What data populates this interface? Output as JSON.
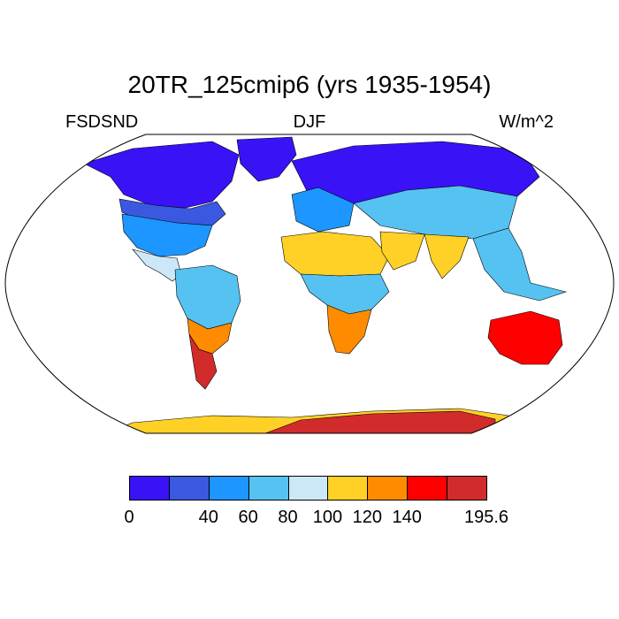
{
  "title": "20TR_125cmip6 (yrs 1935-1954)",
  "left_label": "FSDSND",
  "center_label": "DJF",
  "right_label": "W/m^2",
  "colorbar": {
    "colors": [
      "#3a12f6",
      "#3b58e0",
      "#1d96ff",
      "#55c2f2",
      "#cce8f8",
      "#ffd026",
      "#ff8c00",
      "#ff0000",
      "#d22b2b"
    ],
    "ticks": [
      {
        "value": "0",
        "index": 0
      },
      {
        "value": "40",
        "index": 2
      },
      {
        "value": "60",
        "index": 3
      },
      {
        "value": "80",
        "index": 4
      },
      {
        "value": "100",
        "index": 5
      },
      {
        "value": "120",
        "index": 6
      },
      {
        "value": "140",
        "index": 7
      },
      {
        "value": "195.6",
        "index": 9
      }
    ]
  },
  "legend_ranges": [
    "0-20",
    "20-40",
    "40-60",
    "60-80",
    "80-100",
    "100-120",
    "120-140",
    "140-160",
    "160-195.6"
  ],
  "map_regions": [
    {
      "name": "north-america-arctic",
      "level": 0
    },
    {
      "name": "greenland",
      "level": 0
    },
    {
      "name": "eurasia-north",
      "level": 0
    },
    {
      "name": "canada-south",
      "level": 1
    },
    {
      "name": "usa",
      "level": 2
    },
    {
      "name": "mexico",
      "level": 4
    },
    {
      "name": "south-america-north",
      "level": 3
    },
    {
      "name": "south-america-south",
      "level": 6
    },
    {
      "name": "patagonia",
      "level": 8
    },
    {
      "name": "europe",
      "level": 2
    },
    {
      "name": "central-asia",
      "level": 3
    },
    {
      "name": "sahara",
      "level": 5
    },
    {
      "name": "arabia",
      "level": 5
    },
    {
      "name": "india",
      "level": 5
    },
    {
      "name": "central-africa",
      "level": 3
    },
    {
      "name": "southern-africa",
      "level": 6
    },
    {
      "name": "southeast-asia",
      "level": 3
    },
    {
      "name": "australia",
      "level": 7
    },
    {
      "name": "antarctica-coast",
      "level": 5
    },
    {
      "name": "antarctica-interior",
      "level": 8
    }
  ]
}
